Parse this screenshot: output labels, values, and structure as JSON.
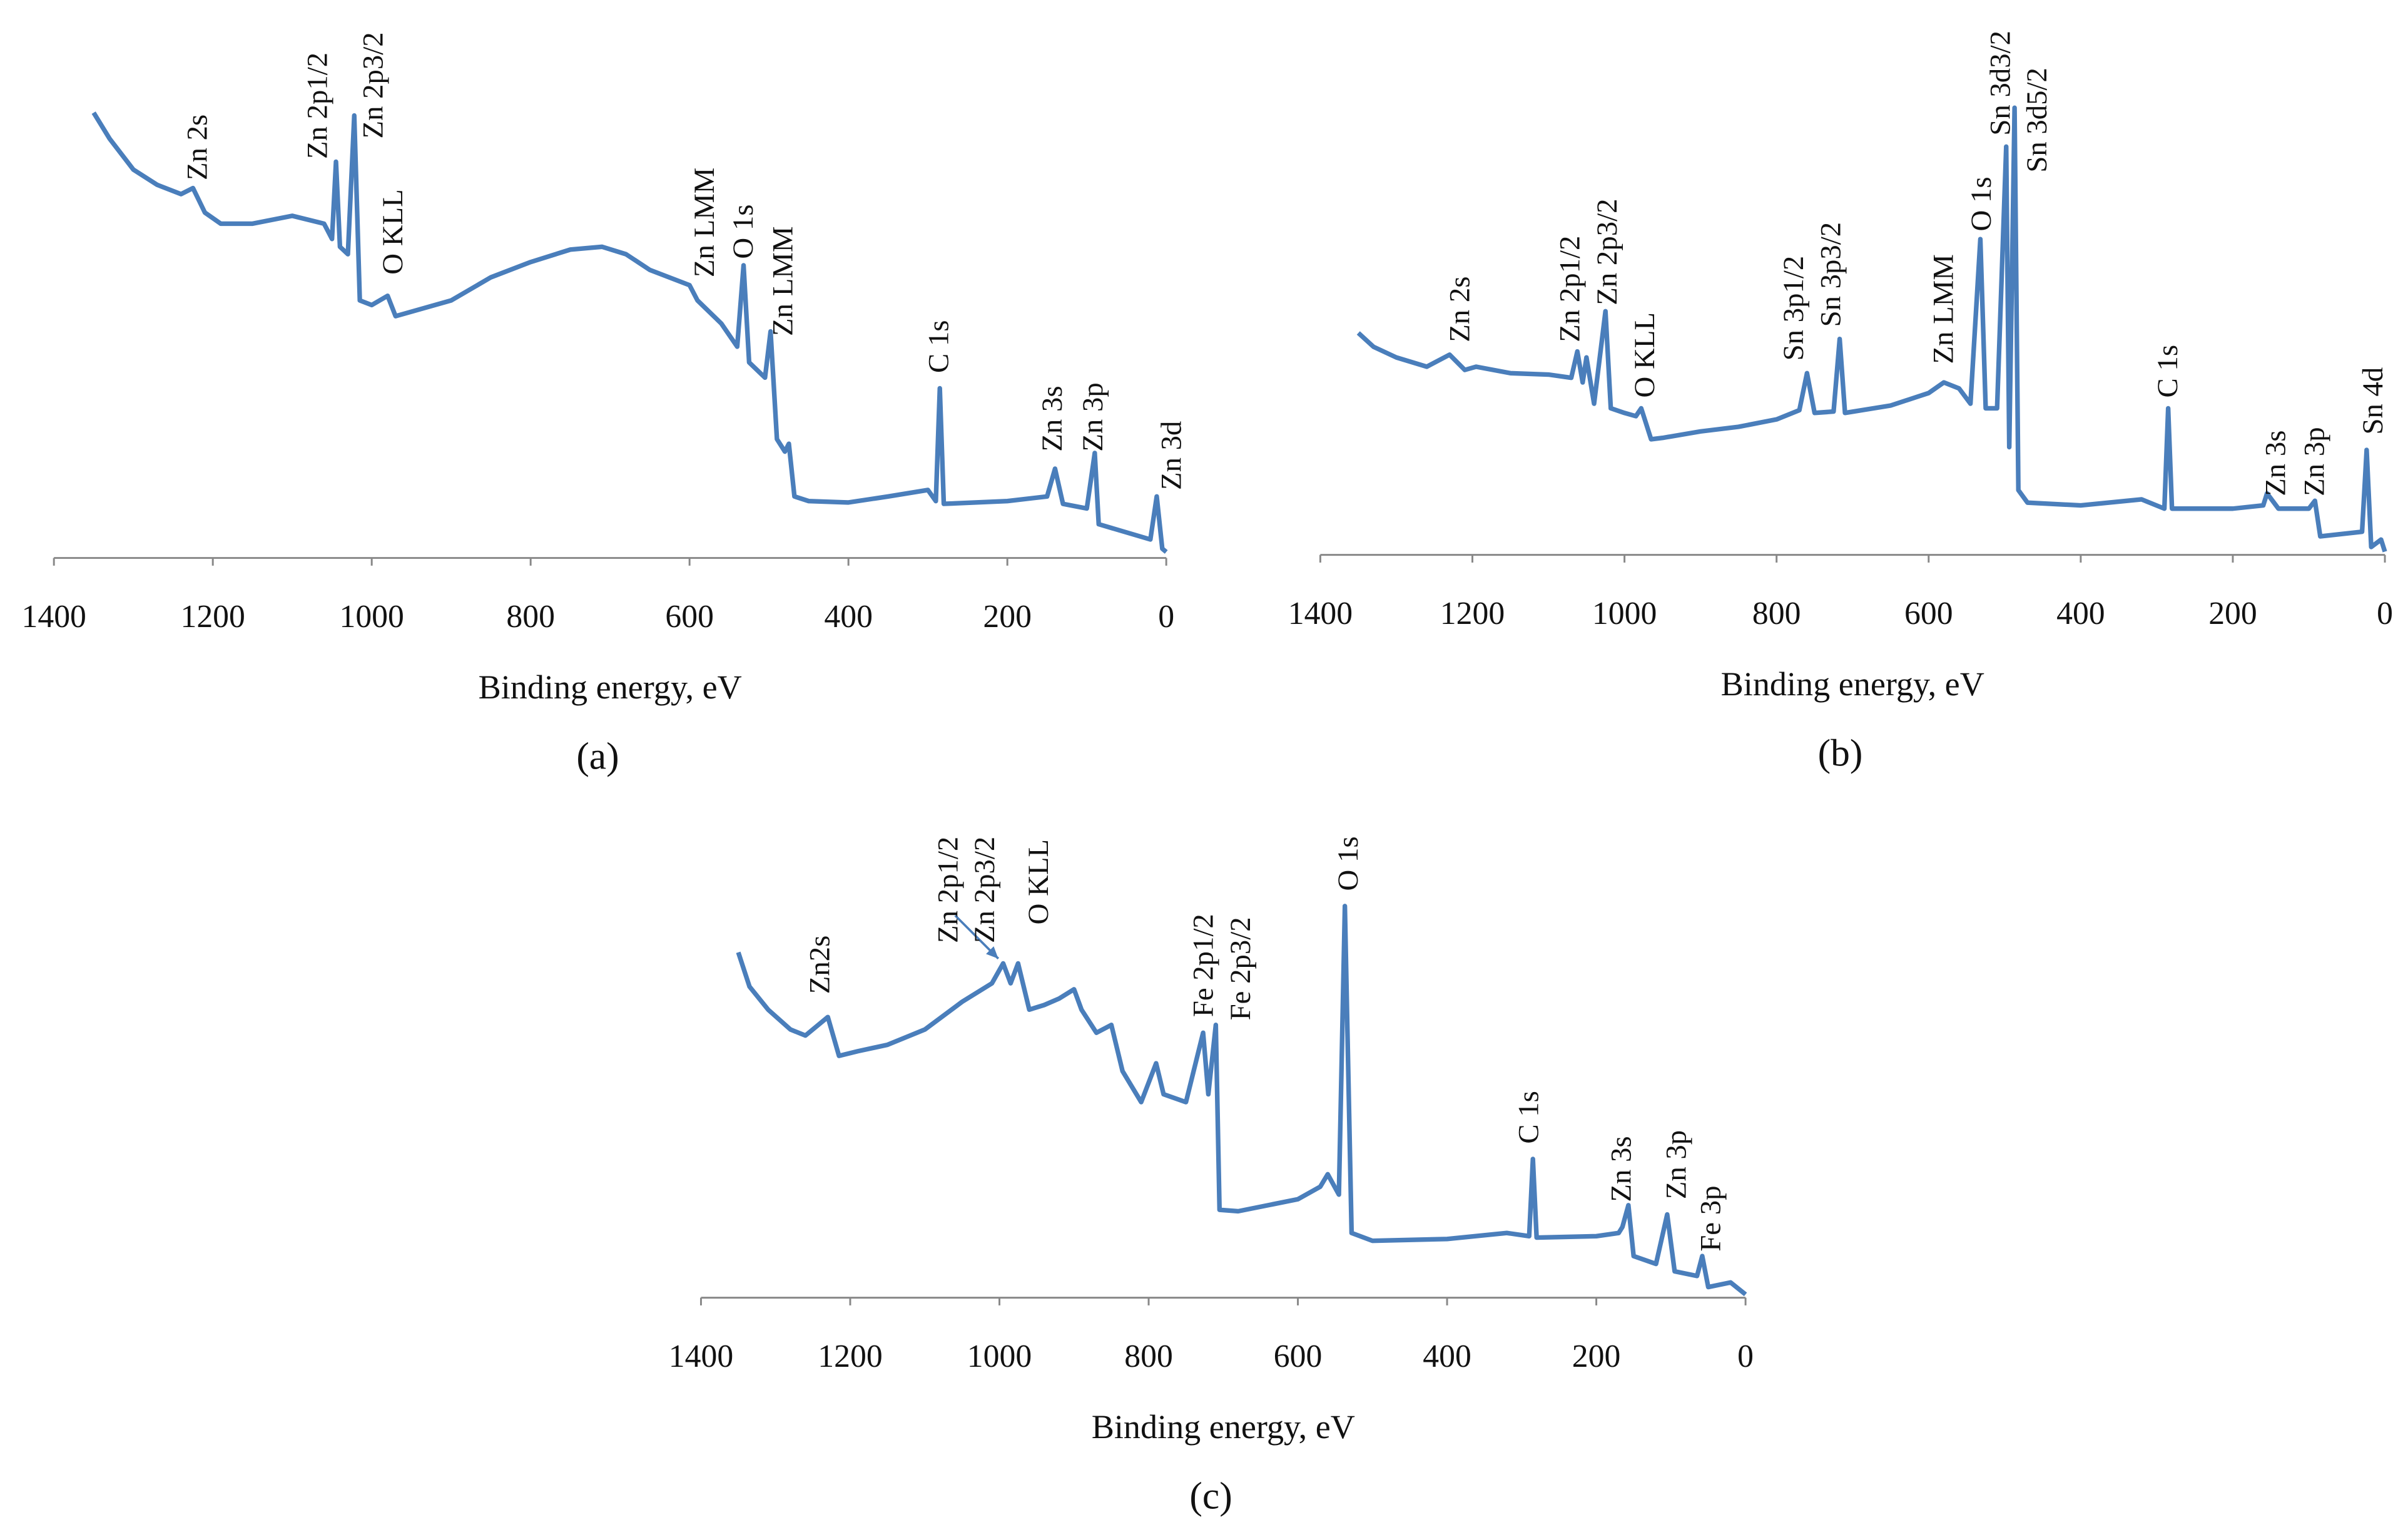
{
  "chart_data": [
    {
      "type": "line",
      "label": "(a)",
      "xlabel": "Binding energy, eV",
      "color": "#4a7ebb",
      "xlim": [
        1400,
        0
      ],
      "xticks": [
        1400,
        1200,
        1000,
        800,
        600,
        400,
        200,
        0
      ],
      "ylim": [
        0,
        100
      ],
      "x": [
        1350,
        1330,
        1300,
        1270,
        1240,
        1225,
        1210,
        1190,
        1150,
        1100,
        1060,
        1050,
        1045,
        1040,
        1030,
        1022,
        1015,
        1000,
        980,
        970,
        900,
        850,
        800,
        750,
        710,
        680,
        650,
        600,
        590,
        560,
        540,
        532,
        525,
        505,
        498,
        490,
        480,
        475,
        468,
        450,
        400,
        350,
        300,
        290,
        285,
        280,
        200,
        150,
        140,
        130,
        100,
        90,
        85,
        20,
        12,
        5,
        0
      ],
      "values": [
        96.3,
        90.7,
        84,
        80.7,
        78.7,
        80,
        74.7,
        72.3,
        72.3,
        74,
        72.3,
        69,
        85.7,
        67.3,
        65.7,
        95.7,
        55.7,
        54.7,
        56.7,
        52.3,
        55.7,
        60.7,
        64,
        66.7,
        67.3,
        65.7,
        62.3,
        59,
        55.7,
        50.7,
        45.7,
        63.3,
        42.3,
        39,
        49,
        25.7,
        23,
        24.7,
        13.3,
        12.3,
        12,
        13.3,
        14.7,
        12.3,
        36.7,
        11.7,
        12.3,
        13.3,
        19.3,
        11.7,
        10.7,
        22.7,
        7.3,
        4,
        13.3,
        2,
        1.3
      ],
      "annotations": [
        {
          "text": "Zn 2s",
          "x": 1216,
          "y": 81.7
        },
        {
          "text": "Zn 2p1/2",
          "x": 1065,
          "y": 86.3
        },
        {
          "text": "Zn 2p3/2",
          "x": 995,
          "y": 90.7
        },
        {
          "text": "O KLL",
          "x": 970,
          "y": 61.3
        },
        {
          "text": "Zn LMM",
          "x": 578,
          "y": 60.7
        },
        {
          "text": "O 1s",
          "x": 529,
          "y": 64.7
        },
        {
          "text": "Zn LMM",
          "x": 479,
          "y": 48
        },
        {
          "text": "C 1s",
          "x": 283,
          "y": 40
        },
        {
          "text": "Zn 3s",
          "x": 140,
          "y": 23
        },
        {
          "text": "Zn 3p",
          "x": 89,
          "y": 23
        },
        {
          "text": "Zn 3d",
          "x": -10,
          "y": 14.7
        }
      ]
    },
    {
      "type": "line",
      "label": "(b)",
      "xlabel": "Binding energy, eV",
      "color": "#4a7ebb",
      "xlim": [
        1400,
        0
      ],
      "xticks": [
        1400,
        1200,
        1000,
        800,
        600,
        400,
        200,
        0
      ],
      "ylim": [
        0,
        100
      ],
      "x": [
        1350,
        1330,
        1300,
        1260,
        1230,
        1210,
        1195,
        1150,
        1100,
        1070,
        1062,
        1055,
        1050,
        1040,
        1025,
        1018,
        1000,
        985,
        978,
        965,
        950,
        900,
        850,
        800,
        770,
        760,
        750,
        725,
        717,
        710,
        650,
        600,
        580,
        560,
        545,
        532,
        525,
        510,
        498,
        494,
        487,
        482,
        470,
        400,
        320,
        290,
        285,
        280,
        200,
        160,
        155,
        140,
        100,
        92,
        85,
        30,
        24,
        18,
        5,
        0
      ],
      "values": [
        48,
        45,
        42.7,
        40.7,
        43.3,
        40,
        40.7,
        39.3,
        39,
        38.3,
        44,
        37.3,
        42.7,
        32.7,
        52.7,
        31.7,
        30.7,
        30,
        31.7,
        25,
        25.3,
        26.7,
        27.7,
        29.3,
        31.3,
        39.3,
        30.7,
        31,
        46.7,
        30.7,
        32.3,
        35,
        37.3,
        36,
        32.7,
        68.3,
        31.7,
        31.7,
        88.3,
        23.3,
        96.7,
        14,
        11.3,
        10.7,
        12,
        10,
        31.7,
        10,
        10,
        10.7,
        13.3,
        10,
        10,
        11.7,
        4,
        5,
        22.7,
        1.7,
        3.3,
        0.7
      ],
      "annotations": [
        {
          "text": "Zn 2s",
          "x": 1213,
          "y": 46
        },
        {
          "text": "Zn 2p1/2",
          "x": 1068,
          "y": 46
        },
        {
          "text": "Zn 2p3/2",
          "x": 1019,
          "y": 54
        },
        {
          "text": "O KLL",
          "x": 970,
          "y": 34
        },
        {
          "text": "Sn 3p1/2",
          "x": 774,
          "y": 42
        },
        {
          "text": "Sn 3p3/2",
          "x": 725,
          "y": 49.3
        },
        {
          "text": "Zn LMM",
          "x": 577,
          "y": 41.3
        },
        {
          "text": "O 1s",
          "x": 527,
          "y": 70
        },
        {
          "text": "Sn 3d3/2",
          "x": 502,
          "y": 90.7
        },
        {
          "text": "Sn 3d5/2",
          "x": 454,
          "y": 82.7
        },
        {
          "text": "C 1s",
          "x": 282,
          "y": 34
        },
        {
          "text": "Zn 3s",
          "x": 140,
          "y": 12.7
        },
        {
          "text": "Zn 3p",
          "x": 89,
          "y": 12.7
        },
        {
          "text": "Sn 4d",
          "x": 12,
          "y": 26
        }
      ]
    },
    {
      "type": "line",
      "label": "(c)",
      "xlabel": "Binding energy, eV",
      "color": "#4a7ebb",
      "xlim": [
        1400,
        0
      ],
      "xticks": [
        1400,
        1200,
        1000,
        800,
        600,
        400,
        200,
        0
      ],
      "ylim": [
        0,
        100
      ],
      "x": [
        1350,
        1335,
        1310,
        1280,
        1260,
        1230,
        1215,
        1190,
        1150,
        1100,
        1050,
        1010,
        995,
        985,
        975,
        960,
        940,
        920,
        900,
        890,
        870,
        850,
        835,
        810,
        790,
        780,
        750,
        727,
        720,
        710,
        705,
        680,
        600,
        570,
        560,
        545,
        537,
        528,
        500,
        400,
        320,
        290,
        285,
        280,
        200,
        170,
        165,
        157,
        150,
        120,
        105,
        95,
        65,
        58,
        50,
        20,
        0
      ],
      "values": [
        74.7,
        67.3,
        62.3,
        58,
        56.7,
        60.7,
        52.3,
        53.3,
        54.7,
        58,
        64,
        68,
        72.3,
        68,
        72.3,
        62.3,
        63.3,
        64.7,
        66.7,
        62.3,
        57.3,
        59,
        49,
        42.3,
        50.7,
        44,
        42.3,
        57.3,
        44,
        59,
        19,
        18.7,
        21.3,
        24,
        26.7,
        22.3,
        84.7,
        14,
        12.3,
        12.7,
        14,
        13.3,
        30,
        13,
        13.3,
        14,
        15.3,
        20,
        9,
        7.3,
        18,
        5.7,
        4.7,
        9,
        2.3,
        3.3,
        0.7
      ],
      "annotations": [
        {
          "text": "Zn2s",
          "x": 1237,
          "y": 65.7
        },
        {
          "text": "Zn 2p1/2",
          "x": 1065,
          "y": 76.7
        },
        {
          "text": "Zn 2p3/2",
          "x": 1016,
          "y": 76.7
        },
        {
          "text": "O KLL",
          "x": 944,
          "y": 80.7
        },
        {
          "text": "Fe 2p1/2",
          "x": 723,
          "y": 60.7
        },
        {
          "text": "Fe 2p3/2",
          "x": 673,
          "y": 60
        },
        {
          "text": "O 1s",
          "x": 529,
          "y": 88
        },
        {
          "text": "C 1s",
          "x": 287,
          "y": 33.3
        },
        {
          "text": "Zn 3s",
          "x": 163,
          "y": 20.7
        },
        {
          "text": "Zn 3p",
          "x": 89,
          "y": 21.3
        },
        {
          "text": "Fe 3p",
          "x": 43,
          "y": 10
        }
      ]
    }
  ]
}
